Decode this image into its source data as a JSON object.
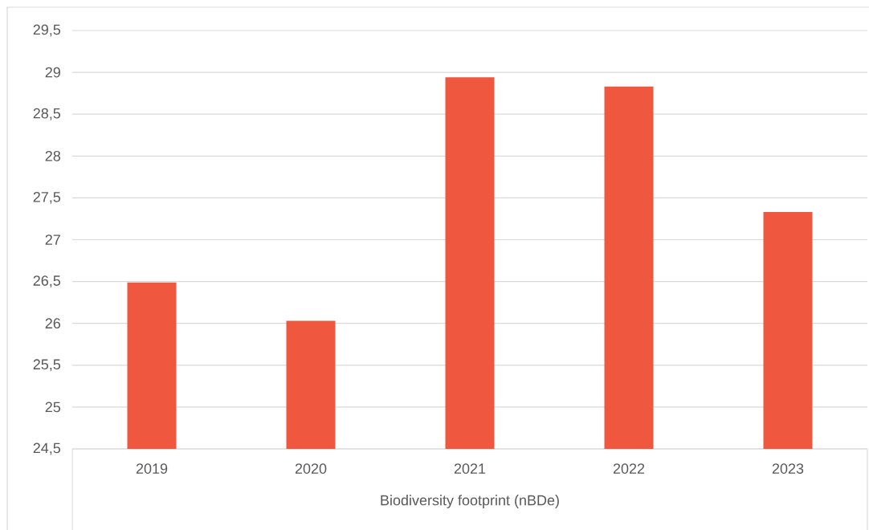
{
  "chart_data": {
    "type": "bar",
    "xlabel": "Biodiversity footprint (nBDe)",
    "categories": [
      "2019",
      "2020",
      "2021",
      "2022",
      "2023"
    ],
    "values": [
      26.49,
      26.03,
      28.94,
      28.83,
      27.33
    ],
    "color": "#f0573f",
    "ylim": [
      24.5,
      29.5
    ],
    "yticks": [
      {
        "value": 24.5,
        "label": "24,5"
      },
      25,
      {
        "value": 25.5,
        "label": "25,5"
      },
      26,
      {
        "value": 26.5,
        "label": "26,5"
      },
      27,
      {
        "value": 27.5,
        "label": "27,5"
      },
      28,
      {
        "value": 28.5,
        "label": "28,5"
      },
      29,
      {
        "value": 29.5,
        "label": "29,5"
      }
    ],
    "grid": "y"
  }
}
